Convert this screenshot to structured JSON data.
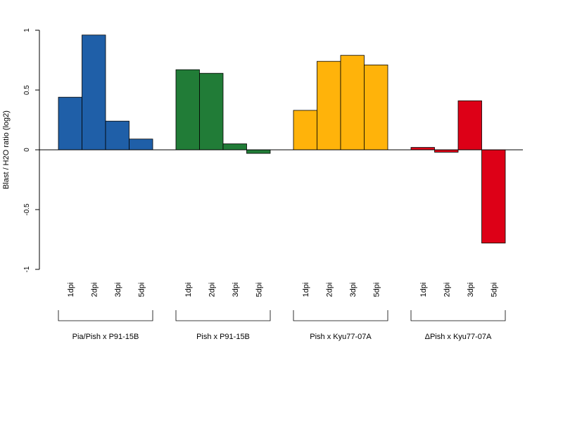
{
  "chart_data": {
    "type": "bar",
    "ylabel": "Blast / H2O ratio (log2)",
    "ylim": [
      -1,
      1
    ],
    "yticks": [
      1,
      0.5,
      0,
      -0.5,
      -1
    ],
    "ytick_labels": [
      "1",
      "0.5",
      "0",
      "-0.5",
      "-1"
    ],
    "groups": [
      {
        "name": "Pia/Pish x P91-15B",
        "color": "#1f5fa8",
        "categories": [
          "1dpi",
          "2dpi",
          "3dpi",
          "5dpi"
        ],
        "values": [
          0.44,
          0.96,
          0.24,
          0.09
        ]
      },
      {
        "name": "Pish x P91-15B",
        "color": "#217c37",
        "categories": [
          "1dpi",
          "2dpi",
          "3dpi",
          "5dpi"
        ],
        "values": [
          0.67,
          0.64,
          0.05,
          -0.03
        ]
      },
      {
        "name": "Pish x Kyu77-07A",
        "color": "#ffb30a",
        "categories": [
          "1dpi",
          "2dpi",
          "3dpi",
          "5dpi"
        ],
        "values": [
          0.33,
          0.74,
          0.79,
          0.71
        ]
      },
      {
        "name": "ΔPish x Kyu77-07A",
        "color": "#dd0017",
        "categories": [
          "1dpi",
          "2dpi",
          "3dpi",
          "5dpi"
        ],
        "values": [
          0.02,
          -0.02,
          0.41,
          -0.78
        ]
      }
    ],
    "grid": false,
    "legend": "none"
  }
}
